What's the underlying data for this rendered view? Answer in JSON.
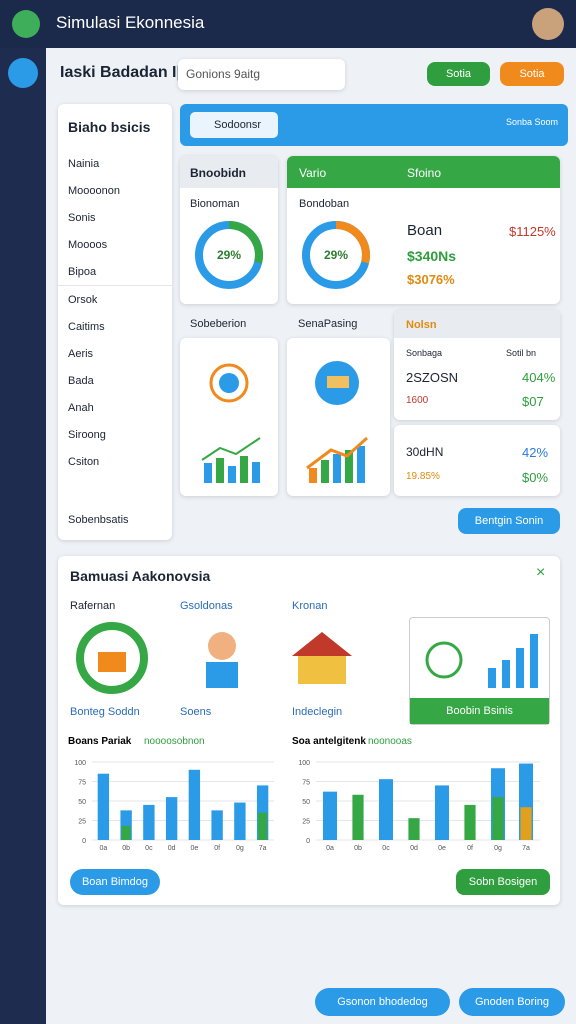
{
  "app_title": "Simulasi Ekonnesia",
  "header": {
    "title": "Iaski Badadan I|",
    "search": "Gonions 9aitg",
    "buttons": [
      "Sotia",
      "Sotia"
    ]
  },
  "sidebar": {
    "title": "Biaho bsicis",
    "items": [
      "Nainia",
      "Moooonon",
      "Sonis",
      "Moooos",
      "Bipoa",
      "Orsok",
      "Caitims",
      "Aeris",
      "Bada",
      "Anah",
      "Siroong",
      "Csiton"
    ],
    "footer": "Sobenbsatis"
  },
  "banner": {
    "button": "Sodoonsr",
    "user": "Sonba Soom"
  },
  "cards": [
    {
      "title": "Bnoobidn",
      "subtitle": "Bionoman",
      "donut": {
        "value": 29,
        "label": "29%"
      }
    },
    {
      "title": "Vario",
      "tag": "Sfoino",
      "subtitle": "Bondoban",
      "donut": {
        "value": 29,
        "label": "29%"
      },
      "name": "Boan",
      "stats": [
        "$1125%",
        "$340Ns",
        "$3076%"
      ]
    }
  ],
  "tiles": [
    "Sobeberion",
    "SenaPasing"
  ],
  "summary": {
    "title": "Nolsn",
    "columns": [
      "Sonbaga",
      "Sotil bn"
    ],
    "rows": [
      [
        "2SZOSN",
        "404%",
        "1600",
        "$07"
      ],
      [
        "30dHN",
        "42%",
        "19.85%",
        "$0%"
      ]
    ],
    "button": "Bentgin Sonin"
  },
  "panel": {
    "title": "Bamuasi Aakonovsia",
    "features": [
      "Rafernan",
      "Gsoldonas",
      "Kronan",
      "Bonteg Soddn",
      "Soens",
      "Indeclegin"
    ],
    "feature_button": "Boobin Bsinis",
    "buttons": [
      "Boan Bimdog",
      "Sobn Bosigen"
    ]
  },
  "chart_data": [
    {
      "type": "bar",
      "title": "Boans Pariak",
      "subtitle": "noooosobnon",
      "categories": [
        "0a",
        "0b",
        "0c",
        "0d",
        "0e",
        "0f",
        "0g",
        "7a"
      ],
      "ylim": [
        0,
        100
      ],
      "yticks": [
        0,
        25,
        50,
        75,
        100
      ],
      "series": [
        {
          "name": "A",
          "color": "#2b9be8",
          "values": [
            85,
            38,
            45,
            55,
            90,
            38,
            48,
            70
          ]
        },
        {
          "name": "B",
          "color": "#35a845",
          "values": [
            null,
            18,
            null,
            null,
            null,
            null,
            null,
            35
          ]
        }
      ]
    },
    {
      "type": "bar",
      "title": "Soa antelgitenk",
      "subtitle": "noonooas",
      "categories": [
        "0a",
        "0b",
        "0c",
        "0d",
        "0e",
        "0f",
        "0g",
        "7a"
      ],
      "ylim": [
        0,
        100
      ],
      "yticks": [
        0,
        25,
        50,
        75,
        100
      ],
      "series": [
        {
          "name": "A",
          "color": "#2b9be8",
          "values": [
            62,
            null,
            78,
            null,
            70,
            null,
            92,
            98
          ]
        },
        {
          "name": "B",
          "color": "#35a845",
          "values": [
            null,
            58,
            null,
            28,
            null,
            45,
            55,
            null
          ]
        },
        {
          "name": "C",
          "color": "#e0a020",
          "values": [
            null,
            null,
            null,
            null,
            null,
            null,
            null,
            42
          ]
        }
      ]
    }
  ],
  "footer": {
    "buttons": [
      "Gsonon bhodedog",
      "Gnoden Boring"
    ]
  }
}
